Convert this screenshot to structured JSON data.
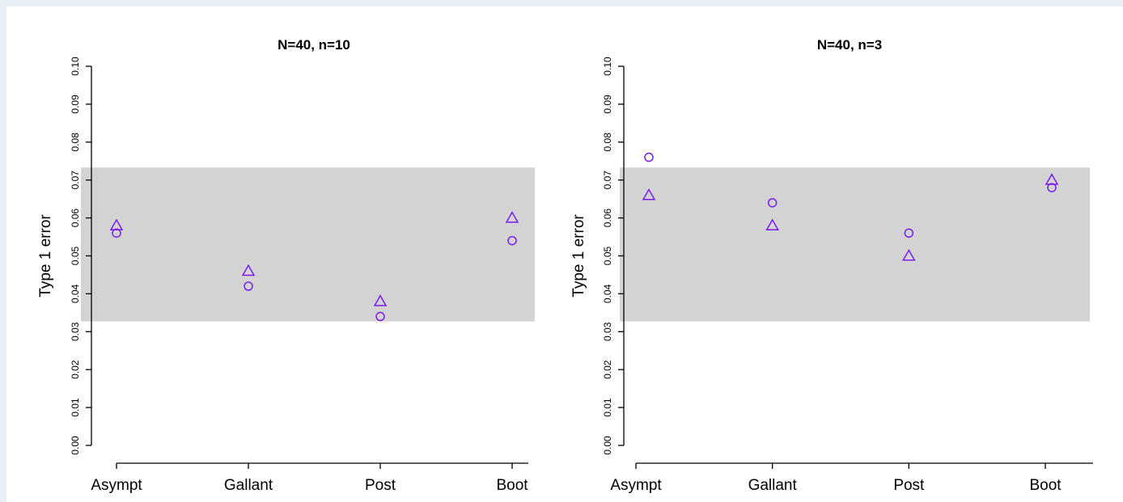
{
  "colors": {
    "marker": "#7a1cf0",
    "band": "#d3d3d3",
    "background": "#ffffff",
    "page": "#e8eef6"
  },
  "chart_data": [
    {
      "type": "scatter",
      "title": "N=40, n=10",
      "ylabel": "Type 1 error",
      "xlabel": "",
      "categories": [
        "Asympt",
        "Gallant",
        "Post",
        "Boot"
      ],
      "ylim": [
        0,
        0.1
      ],
      "yticks": [
        "0.00",
        "0.01",
        "0.02",
        "0.03",
        "0.04",
        "0.05",
        "0.06",
        "0.07",
        "0.08",
        "0.09",
        "0.10"
      ],
      "band": [
        0.0327,
        0.0733
      ],
      "grid": false,
      "series": [
        {
          "marker": "triangle",
          "values": [
            0.058,
            0.046,
            0.038,
            0.06
          ]
        },
        {
          "marker": "circle",
          "values": [
            0.056,
            0.042,
            0.034,
            0.054
          ]
        }
      ]
    },
    {
      "type": "scatter",
      "title": "N=40, n=3",
      "ylabel": "Type 1 error",
      "xlabel": "",
      "categories": [
        "Asympt",
        "Gallant",
        "Post",
        "Boot"
      ],
      "ylim": [
        0,
        0.1
      ],
      "yticks": [
        "0.00",
        "0.01",
        "0.02",
        "0.03",
        "0.04",
        "0.05",
        "0.06",
        "0.07",
        "0.08",
        "0.09",
        "0.10"
      ],
      "band": [
        0.0327,
        0.0733
      ],
      "grid": false,
      "series": [
        {
          "marker": "triangle",
          "values": [
            0.066,
            0.058,
            0.05,
            0.07
          ]
        },
        {
          "marker": "circle",
          "values": [
            0.076,
            0.064,
            0.056,
            0.068
          ]
        }
      ]
    }
  ]
}
